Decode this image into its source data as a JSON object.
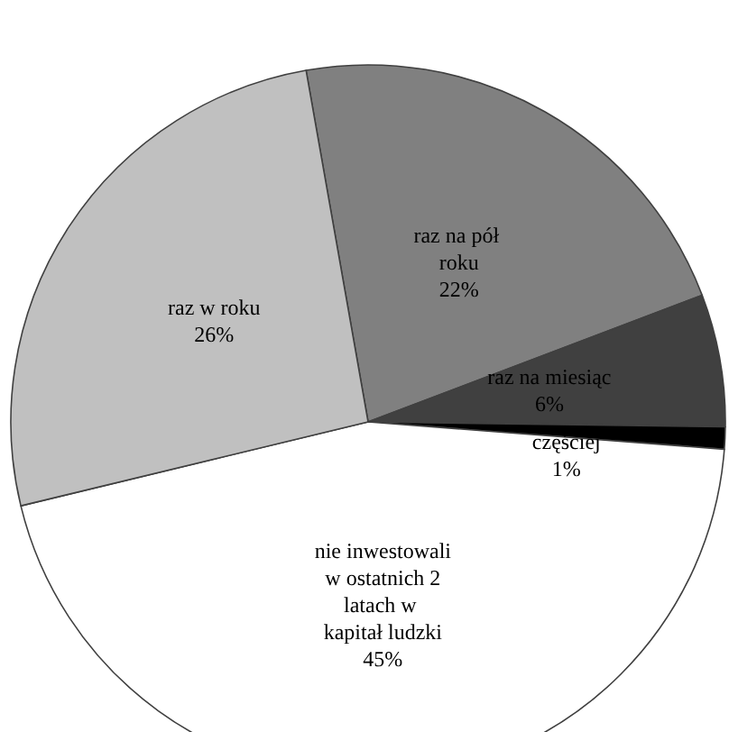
{
  "chart_data": {
    "type": "pie",
    "categories": [
      "raz na pół roku",
      "raz na miesiąc",
      "częściej",
      "nie inwestowali w ostatnich 2 latach w kapitał ludzki",
      "raz w roku"
    ],
    "values": [
      22,
      6,
      1,
      45,
      26
    ],
    "colors": [
      "#808080",
      "#404040",
      "#000000",
      "#ffffff",
      "#c0c0c0"
    ],
    "value_labels": [
      "22%",
      "6%",
      "1%",
      "45%",
      "26%"
    ],
    "legend": false
  }
}
